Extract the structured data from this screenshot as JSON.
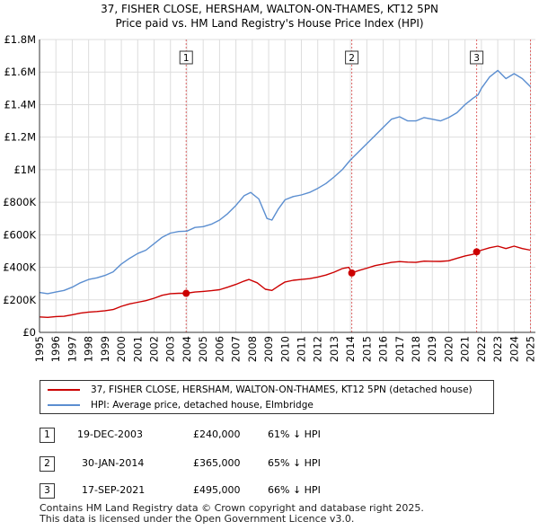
{
  "header": {
    "title": "37, FISHER CLOSE, HERSHAM, WALTON-ON-THAMES, KT12 5PN",
    "subtitle": "Price paid vs. HM Land Registry's House Price Index (HPI)"
  },
  "chart_data": {
    "type": "line",
    "title": "37, FISHER CLOSE, HERSHAM, WALTON-ON-THAMES, KT12 5PN",
    "subtitle": "Price paid vs. HM Land Registry's House Price Index (HPI)",
    "xlabel": "",
    "ylabel": "",
    "xlim": [
      1995,
      2025.3
    ],
    "ylim": [
      0,
      1800000
    ],
    "y_ticks": [
      {
        "value": 0,
        "label": "£0"
      },
      {
        "value": 200000,
        "label": "£200K"
      },
      {
        "value": 400000,
        "label": "£400K"
      },
      {
        "value": 600000,
        "label": "£600K"
      },
      {
        "value": 800000,
        "label": "£800K"
      },
      {
        "value": 1000000,
        "label": "£1M"
      },
      {
        "value": 1200000,
        "label": "£1.2M"
      },
      {
        "value": 1400000,
        "label": "£1.4M"
      },
      {
        "value": 1600000,
        "label": "£1.6M"
      },
      {
        "value": 1800000,
        "label": "£1.8M"
      }
    ],
    "x_ticks": [
      "1995",
      "1996",
      "1997",
      "1998",
      "1999",
      "2000",
      "2001",
      "2002",
      "2003",
      "2004",
      "2005",
      "2006",
      "2007",
      "2008",
      "2009",
      "2010",
      "2011",
      "2012",
      "2013",
      "2014",
      "2015",
      "2016",
      "2017",
      "2018",
      "2019",
      "2020",
      "2021",
      "2022",
      "2023",
      "2024",
      "2025"
    ],
    "grid": true,
    "series": [
      {
        "name": "37, FISHER CLOSE, HERSHAM, WALTON-ON-THAMES, KT12 5PN (detached house)",
        "color": "#cc0000",
        "points": [
          [
            1995.0,
            95000
          ],
          [
            1995.5,
            92000
          ],
          [
            1996.0,
            97000
          ],
          [
            1996.5,
            99000
          ],
          [
            1997.0,
            108000
          ],
          [
            1997.5,
            118000
          ],
          [
            1998.0,
            125000
          ],
          [
            1998.5,
            128000
          ],
          [
            1999.0,
            133000
          ],
          [
            1999.5,
            140000
          ],
          [
            2000.0,
            160000
          ],
          [
            2000.5,
            175000
          ],
          [
            2001.0,
            185000
          ],
          [
            2001.5,
            195000
          ],
          [
            2002.0,
            210000
          ],
          [
            2002.5,
            228000
          ],
          [
            2003.0,
            238000
          ],
          [
            2003.5,
            240000
          ],
          [
            2003.96,
            240000
          ],
          [
            2004.5,
            248000
          ],
          [
            2005.0,
            252000
          ],
          [
            2005.5,
            256000
          ],
          [
            2006.0,
            262000
          ],
          [
            2006.5,
            278000
          ],
          [
            2007.0,
            295000
          ],
          [
            2007.5,
            315000
          ],
          [
            2007.8,
            325000
          ],
          [
            2008.3,
            305000
          ],
          [
            2008.8,
            265000
          ],
          [
            2009.2,
            258000
          ],
          [
            2009.6,
            285000
          ],
          [
            2010.0,
            310000
          ],
          [
            2010.5,
            320000
          ],
          [
            2011.0,
            325000
          ],
          [
            2011.5,
            330000
          ],
          [
            2012.0,
            340000
          ],
          [
            2012.5,
            352000
          ],
          [
            2013.0,
            370000
          ],
          [
            2013.5,
            392000
          ],
          [
            2013.9,
            400000
          ],
          [
            2014.08,
            365000
          ],
          [
            2014.5,
            380000
          ],
          [
            2015.0,
            395000
          ],
          [
            2015.5,
            410000
          ],
          [
            2016.0,
            420000
          ],
          [
            2016.5,
            430000
          ],
          [
            2017.0,
            435000
          ],
          [
            2017.5,
            432000
          ],
          [
            2018.0,
            430000
          ],
          [
            2018.5,
            438000
          ],
          [
            2019.0,
            437000
          ],
          [
            2019.5,
            436000
          ],
          [
            2020.0,
            440000
          ],
          [
            2020.5,
            455000
          ],
          [
            2021.0,
            470000
          ],
          [
            2021.5,
            480000
          ],
          [
            2021.71,
            495000
          ],
          [
            2022.0,
            505000
          ],
          [
            2022.5,
            520000
          ],
          [
            2023.0,
            530000
          ],
          [
            2023.5,
            515000
          ],
          [
            2024.0,
            530000
          ],
          [
            2024.5,
            515000
          ],
          [
            2025.0,
            505000
          ]
        ]
      },
      {
        "name": "HPI: Average price, detached house, Elmbridge",
        "color": "#5b8ed0",
        "points": [
          [
            1995.0,
            245000
          ],
          [
            1995.5,
            238000
          ],
          [
            1996.0,
            248000
          ],
          [
            1996.5,
            258000
          ],
          [
            1997.0,
            278000
          ],
          [
            1997.5,
            305000
          ],
          [
            1998.0,
            325000
          ],
          [
            1998.5,
            335000
          ],
          [
            1999.0,
            350000
          ],
          [
            1999.5,
            372000
          ],
          [
            2000.0,
            420000
          ],
          [
            2000.5,
            455000
          ],
          [
            2001.0,
            485000
          ],
          [
            2001.5,
            505000
          ],
          [
            2002.0,
            545000
          ],
          [
            2002.5,
            585000
          ],
          [
            2003.0,
            610000
          ],
          [
            2003.5,
            620000
          ],
          [
            2004.0,
            622000
          ],
          [
            2004.5,
            645000
          ],
          [
            2005.0,
            650000
          ],
          [
            2005.5,
            665000
          ],
          [
            2006.0,
            690000
          ],
          [
            2006.5,
            730000
          ],
          [
            2007.0,
            780000
          ],
          [
            2007.5,
            840000
          ],
          [
            2007.9,
            860000
          ],
          [
            2008.4,
            820000
          ],
          [
            2008.9,
            700000
          ],
          [
            2009.2,
            690000
          ],
          [
            2009.6,
            760000
          ],
          [
            2010.0,
            815000
          ],
          [
            2010.5,
            835000
          ],
          [
            2011.0,
            845000
          ],
          [
            2011.5,
            860000
          ],
          [
            2012.0,
            885000
          ],
          [
            2012.5,
            915000
          ],
          [
            2013.0,
            955000
          ],
          [
            2013.5,
            1000000
          ],
          [
            2014.0,
            1060000
          ],
          [
            2014.5,
            1110000
          ],
          [
            2015.0,
            1160000
          ],
          [
            2015.5,
            1210000
          ],
          [
            2016.0,
            1260000
          ],
          [
            2016.5,
            1310000
          ],
          [
            2017.0,
            1325000
          ],
          [
            2017.5,
            1300000
          ],
          [
            2018.0,
            1300000
          ],
          [
            2018.5,
            1320000
          ],
          [
            2019.0,
            1310000
          ],
          [
            2019.5,
            1300000
          ],
          [
            2020.0,
            1320000
          ],
          [
            2020.5,
            1350000
          ],
          [
            2021.0,
            1400000
          ],
          [
            2021.5,
            1440000
          ],
          [
            2021.8,
            1460000
          ],
          [
            2022.0,
            1500000
          ],
          [
            2022.5,
            1570000
          ],
          [
            2023.0,
            1610000
          ],
          [
            2023.5,
            1560000
          ],
          [
            2024.0,
            1590000
          ],
          [
            2024.5,
            1560000
          ],
          [
            2025.0,
            1510000
          ]
        ]
      }
    ],
    "sales": [
      {
        "label": "1",
        "x": 2003.96,
        "price": 240000
      },
      {
        "label": "2",
        "x": 2014.08,
        "price": 365000
      },
      {
        "label": "3",
        "x": 2021.71,
        "price": 495000
      }
    ],
    "vlines": [
      2003.96,
      2014.08,
      2021.71,
      2025.0
    ]
  },
  "legend": {
    "property_label": "37, FISHER CLOSE, HERSHAM, WALTON-ON-THAMES, KT12 5PN (detached house)",
    "hpi_label": "HPI: Average price, detached house, Elmbridge"
  },
  "sales_table": [
    {
      "num": "1",
      "date": "19-DEC-2003",
      "price": "£240,000",
      "hpi": "61% ↓ HPI"
    },
    {
      "num": "2",
      "date": "30-JAN-2014",
      "price": "£365,000",
      "hpi": "65% ↓ HPI"
    },
    {
      "num": "3",
      "date": "17-SEP-2021",
      "price": "£495,000",
      "hpi": "66% ↓ HPI"
    }
  ],
  "footer": {
    "line1": "Contains HM Land Registry data © Crown copyright and database right 2025.",
    "line2": "This data is licensed under the Open Government Licence v3.0."
  }
}
